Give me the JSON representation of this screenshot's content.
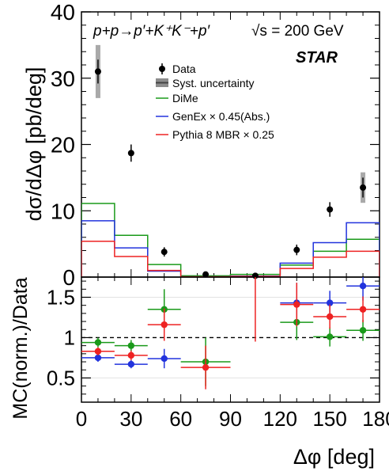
{
  "chart_data": [
    {
      "type": "line",
      "panel": "top",
      "ylabel": "dσ/dΔφ [pb/deg]",
      "xlim": [
        0,
        180
      ],
      "ylim": [
        0,
        40
      ],
      "yticks": [
        0,
        10,
        20,
        30,
        40
      ],
      "bins": [
        [
          0,
          20
        ],
        [
          20,
          40
        ],
        [
          40,
          60
        ],
        [
          60,
          90
        ],
        [
          90,
          120
        ],
        [
          120,
          140
        ],
        [
          140,
          160
        ],
        [
          160,
          180
        ]
      ],
      "data": {
        "name": "Data",
        "color": "#000000",
        "points": [
          {
            "x": 10,
            "y": 31.0,
            "err": 1.8,
            "syst": 4.0
          },
          {
            "x": 30,
            "y": 18.7,
            "err": 1.3,
            "syst": 0.0
          },
          {
            "x": 50,
            "y": 3.8,
            "err": 0.7,
            "syst": 0.0
          },
          {
            "x": 75,
            "y": 0.4,
            "err": 0.3,
            "syst": 0.0
          },
          {
            "x": 105,
            "y": 0.2,
            "err": 0.2,
            "syst": 0.0
          },
          {
            "x": 130,
            "y": 4.1,
            "err": 0.8,
            "syst": 0.0
          },
          {
            "x": 150,
            "y": 10.2,
            "err": 1.1,
            "syst": 0.0
          },
          {
            "x": 170,
            "y": 13.5,
            "err": 1.5,
            "syst": 2.3
          }
        ]
      },
      "series": [
        {
          "name": "DiMe",
          "color": "#1a9a1a",
          "values": [
            11.1,
            6.3,
            1.9,
            0.2,
            0.4,
            1.8,
            3.9,
            5.7
          ]
        },
        {
          "name": "GenEx × 0.45(Abs.)",
          "color": "#2233dd",
          "values": [
            8.5,
            4.4,
            0.9,
            0.05,
            0.15,
            2.1,
            5.2,
            8.2
          ]
        },
        {
          "name": "Pythia 8 MBR × 0.25",
          "color": "#ee2222",
          "values": [
            5.4,
            3.1,
            1.0,
            0.05,
            0.1,
            1.3,
            3.0,
            3.9
          ]
        }
      ],
      "legend": {
        "data_label": "Data",
        "syst_label": "Syst. uncertainty",
        "entries": [
          "DiMe",
          "GenEx × 0.45(Abs.)",
          "Pythia 8 MBR × 0.25"
        ]
      },
      "process_label": "p+p→p′+K⁺K⁻+p′",
      "energy_label": "√s = 200 GeV",
      "experiment_label": "STAR"
    },
    {
      "type": "scatter",
      "panel": "bottom",
      "ylabel": "MC(norm.)/Data",
      "xlabel": "Δφ [deg]",
      "xlim": [
        0,
        180
      ],
      "ylim": [
        0.2,
        1.75
      ],
      "yticks": [
        0.5,
        1,
        1.5
      ],
      "xticks": [
        0,
        30,
        60,
        90,
        120,
        150,
        180
      ],
      "reference_line": 1,
      "series": [
        {
          "name": "DiMe",
          "color": "#1a9a1a",
          "points": [
            {
              "x": 10,
              "y": 0.94,
              "yerr": 0.06,
              "xerr": 10
            },
            {
              "x": 30,
              "y": 0.9,
              "yerr": 0.07,
              "xerr": 10
            },
            {
              "x": 50,
              "y": 1.35,
              "yerr": 0.25,
              "xerr": 10
            },
            {
              "x": 75,
              "y": 0.7,
              "yerr": 0.3,
              "xerr": 15
            },
            {
              "x": 130,
              "y": 1.19,
              "yerr": 0.22,
              "xerr": 10
            },
            {
              "x": 150,
              "y": 1.01,
              "yerr": 0.12,
              "xerr": 10
            },
            {
              "x": 170,
              "y": 1.09,
              "yerr": 0.13,
              "xerr": 10
            }
          ]
        },
        {
          "name": "GenEx × 0.45(Abs.)",
          "color": "#2233dd",
          "points": [
            {
              "x": 10,
              "y": 0.75,
              "yerr": 0.05,
              "xerr": 10
            },
            {
              "x": 30,
              "y": 0.67,
              "yerr": 0.05,
              "xerr": 10
            },
            {
              "x": 50,
              "y": 0.74,
              "yerr": 0.12,
              "xerr": 10
            },
            {
              "x": 130,
              "y": 1.43,
              "yerr": 0.25,
              "xerr": 10
            },
            {
              "x": 150,
              "y": 1.43,
              "yerr": 0.15,
              "xerr": 10
            },
            {
              "x": 170,
              "y": 1.64,
              "yerr": 0.18,
              "xerr": 10
            }
          ]
        },
        {
          "name": "Pythia 8 MBR × 0.25",
          "color": "#ee2222",
          "points": [
            {
              "x": 10,
              "y": 0.83,
              "yerr": 0.05,
              "xerr": 10
            },
            {
              "x": 30,
              "y": 0.78,
              "yerr": 0.06,
              "xerr": 10
            },
            {
              "x": 50,
              "y": 1.16,
              "yerr": 0.2,
              "xerr": 10
            },
            {
              "x": 75,
              "y": 0.63,
              "yerr": 0.27,
              "xerr": 15
            },
            {
              "x": 105,
              "y": 1.9,
              "yerr": 0.95,
              "xerr": 15
            },
            {
              "x": 130,
              "y": 1.41,
              "yerr": 0.27,
              "xerr": 10
            },
            {
              "x": 150,
              "y": 1.26,
              "yerr": 0.15,
              "xerr": 10
            },
            {
              "x": 170,
              "y": 1.35,
              "yerr": 0.16,
              "xerr": 10
            }
          ]
        }
      ]
    }
  ]
}
